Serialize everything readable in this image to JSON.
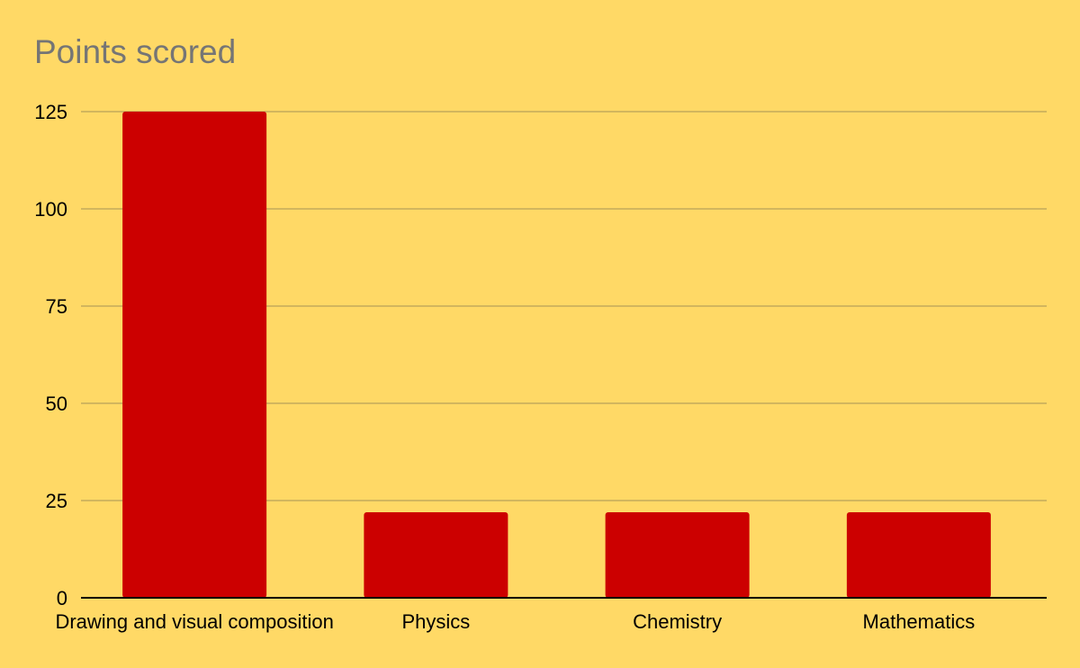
{
  "chart_data": {
    "type": "bar",
    "title": "Points scored",
    "xlabel": "",
    "ylabel": "",
    "categories": [
      "Drawing and visual composition",
      "Physics",
      "Chemistry",
      "Mathematics"
    ],
    "values": [
      125,
      22,
      22,
      22
    ],
    "ylim": [
      0,
      125
    ],
    "yticks": [
      0,
      25,
      50,
      75,
      100,
      125
    ],
    "grid": true,
    "legend": "none",
    "colors": {
      "background": "#FFD966",
      "bar": "#CC0000",
      "gridline": "#B8A15A",
      "axis": "#000000",
      "title": "#757575"
    }
  }
}
